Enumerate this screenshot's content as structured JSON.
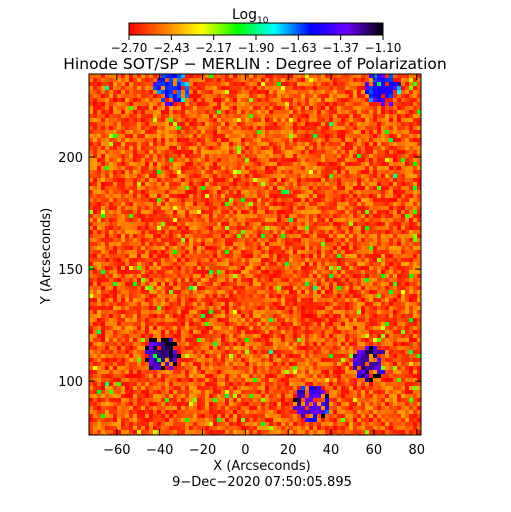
{
  "colorbar": {
    "label_main": "Log",
    "label_sub": "10",
    "tick_labels": [
      "−2.70",
      "−2.43",
      "−2.17",
      "−1.90",
      "−1.63",
      "−1.37",
      "−1.10"
    ],
    "colormap": [
      "#ff0000",
      "#ff7f00",
      "#ffff00",
      "#00ff00",
      "#00ffff",
      "#0000ff",
      "#6a00ff",
      "#000000"
    ]
  },
  "chart_data": {
    "type": "heatmap",
    "title": "Hinode SOT/SP − MERLIN : Degree of Polarization",
    "xlabel": "X (Arcseconds)",
    "ylabel": "Y (Arcseconds)",
    "footer": "9−Dec−2020 07:50:05.895",
    "xlim": [
      -73,
      82
    ],
    "ylim": [
      76,
      237
    ],
    "x_ticks": [
      -60,
      -40,
      -20,
      0,
      20,
      40,
      60,
      80
    ],
    "y_ticks": [
      100,
      150,
      200
    ],
    "x_tick_labels": [
      "−60",
      "−40",
      "−20",
      "0",
      "20",
      "40",
      "60",
      "80"
    ],
    "y_tick_labels": [
      "100",
      "150",
      "200"
    ],
    "value_range": [
      -2.7,
      -1.1
    ],
    "background_level": -2.55,
    "strong_polarization_patches": [
      {
        "x": -40,
        "y": 113,
        "level": -1.2
      },
      {
        "x": 57,
        "y": 109,
        "level": -1.25
      },
      {
        "x": 30,
        "y": 91,
        "level": -1.35
      },
      {
        "x": 63,
        "y": 231,
        "level": -1.5
      },
      {
        "x": -35,
        "y": 232,
        "level": -1.6
      }
    ]
  }
}
